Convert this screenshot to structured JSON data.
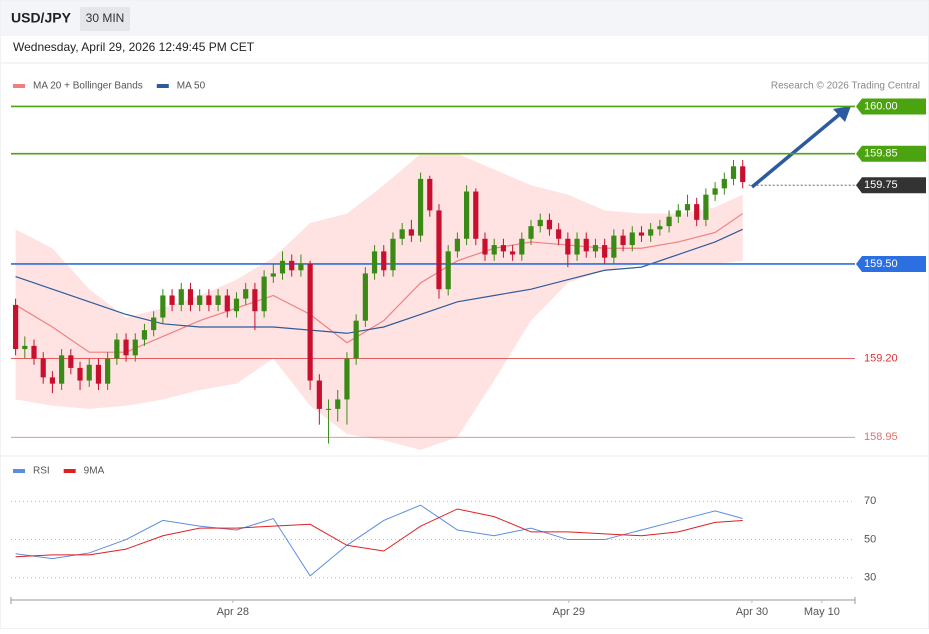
{
  "header": {
    "symbol": "USD/JPY",
    "timeframe": "30 MIN"
  },
  "timestamp": "Wednesday, April 29, 2026 12:49:45 PM CET",
  "chart_data": [
    {
      "type": "candlestick",
      "source": "Research © 2026 Trading Central",
      "up_color": "#3b8a16",
      "down_color": "#c8102e",
      "xlim": [
        -0.5,
        91.2
      ],
      "xticks": [
        {
          "value": 23.6,
          "label": "Apr 28"
        },
        {
          "value": 60.1,
          "label": "Apr 29"
        },
        {
          "value": 80,
          "label": "Apr 30"
        },
        {
          "value": 87.6,
          "label": "May 10"
        }
      ],
      "ylim": [
        158.9,
        160.03
      ],
      "open": [
        159.37,
        159.23,
        159.24,
        159.2,
        159.14,
        159.12,
        159.21,
        159.17,
        159.13,
        159.18,
        159.12,
        159.2,
        159.26,
        159.21,
        159.26,
        159.29,
        159.33,
        159.4,
        159.37,
        159.42,
        159.37,
        159.4,
        159.37,
        159.4,
        159.35,
        159.39,
        159.42,
        159.35,
        159.46,
        159.47,
        159.51,
        159.48,
        159.5,
        159.13,
        159.04,
        159.04,
        159.07,
        159.2,
        159.32,
        159.47,
        159.54,
        159.48,
        159.58,
        159.61,
        159.59,
        159.77,
        159.67,
        159.42,
        159.54,
        159.58,
        159.73,
        159.58,
        159.53,
        159.56,
        159.54,
        159.53,
        159.58,
        159.62,
        159.64,
        159.61,
        159.58,
        159.53,
        159.58,
        159.54,
        159.56,
        159.52,
        159.59,
        159.56,
        159.6,
        159.59,
        159.61,
        159.62,
        159.65,
        159.67,
        159.69,
        159.64,
        159.72,
        159.74,
        159.77,
        159.81
      ],
      "high": [
        159.39,
        159.27,
        159.26,
        159.22,
        159.16,
        159.23,
        159.23,
        159.19,
        159.2,
        159.2,
        159.22,
        159.28,
        159.28,
        159.28,
        159.31,
        159.35,
        159.42,
        159.42,
        159.44,
        159.44,
        159.42,
        159.42,
        159.42,
        159.42,
        159.41,
        159.44,
        159.44,
        159.48,
        159.5,
        159.54,
        159.53,
        159.53,
        159.51,
        159.15,
        159.07,
        159.1,
        159.22,
        159.34,
        159.49,
        159.56,
        159.56,
        159.6,
        159.63,
        159.64,
        159.79,
        159.78,
        159.69,
        159.56,
        159.6,
        159.75,
        159.74,
        159.6,
        159.58,
        159.58,
        159.56,
        159.6,
        159.64,
        159.66,
        159.66,
        159.63,
        159.6,
        159.6,
        159.6,
        159.58,
        159.58,
        159.61,
        159.61,
        159.62,
        159.62,
        159.63,
        159.64,
        159.67,
        159.69,
        159.72,
        159.71,
        159.74,
        159.76,
        159.79,
        159.83,
        159.83
      ],
      "low": [
        159.21,
        159.2,
        159.18,
        159.12,
        159.09,
        159.1,
        159.15,
        159.1,
        159.11,
        159.1,
        159.1,
        159.18,
        159.19,
        159.19,
        159.24,
        159.27,
        159.31,
        159.35,
        159.35,
        159.35,
        159.35,
        159.35,
        159.35,
        159.33,
        159.33,
        159.37,
        159.29,
        159.33,
        159.44,
        159.45,
        159.46,
        159.46,
        159.1,
        158.99,
        158.93,
        159.0,
        158.99,
        159.18,
        159.3,
        159.45,
        159.46,
        159.46,
        159.56,
        159.57,
        159.57,
        159.65,
        159.39,
        159.4,
        159.52,
        159.56,
        159.56,
        159.51,
        159.51,
        159.52,
        159.51,
        159.51,
        159.56,
        159.6,
        159.59,
        159.56,
        159.49,
        159.51,
        159.52,
        159.52,
        159.5,
        159.5,
        159.54,
        159.54,
        159.57,
        159.57,
        159.59,
        159.6,
        159.63,
        159.65,
        159.62,
        159.62,
        159.7,
        159.72,
        159.75,
        159.74
      ],
      "close": [
        159.23,
        159.24,
        159.2,
        159.14,
        159.12,
        159.21,
        159.17,
        159.13,
        159.18,
        159.12,
        159.2,
        159.26,
        159.21,
        159.26,
        159.29,
        159.33,
        159.4,
        159.37,
        159.42,
        159.37,
        159.4,
        159.37,
        159.4,
        159.35,
        159.39,
        159.42,
        159.35,
        159.46,
        159.47,
        159.51,
        159.48,
        159.5,
        159.13,
        159.04,
        159.04,
        159.07,
        159.2,
        159.32,
        159.47,
        159.54,
        159.48,
        159.58,
        159.61,
        159.59,
        159.77,
        159.67,
        159.42,
        159.54,
        159.58,
        159.73,
        159.58,
        159.53,
        159.56,
        159.54,
        159.53,
        159.58,
        159.62,
        159.64,
        159.61,
        159.58,
        159.53,
        159.58,
        159.54,
        159.56,
        159.52,
        159.59,
        159.56,
        159.6,
        159.59,
        159.61,
        159.62,
        159.65,
        159.67,
        159.69,
        159.64,
        159.72,
        159.74,
        159.77,
        159.81,
        159.76
      ],
      "series": [
        {
          "name": "MA 20 + Bollinger Bands",
          "color": "#f08080",
          "band_color": "#ffe3e3",
          "x": [
            0,
            4,
            8,
            12,
            16,
            20,
            24,
            28,
            32,
            36,
            40,
            44,
            48,
            52,
            56,
            60,
            64,
            68,
            72,
            76,
            79
          ],
          "values": [
            159.37,
            159.3,
            159.22,
            159.22,
            159.27,
            159.32,
            159.36,
            159.4,
            159.34,
            159.25,
            159.32,
            159.44,
            159.51,
            159.55,
            159.57,
            159.56,
            159.55,
            159.55,
            159.57,
            159.6,
            159.66
          ],
          "upper": [
            159.61,
            159.55,
            159.42,
            159.33,
            159.36,
            159.4,
            159.45,
            159.52,
            159.63,
            159.66,
            159.75,
            159.85,
            159.85,
            159.8,
            159.75,
            159.72,
            159.67,
            159.66,
            159.66,
            159.68,
            159.72
          ],
          "lower": [
            159.07,
            159.05,
            159.04,
            159.05,
            159.07,
            159.1,
            159.12,
            159.2,
            159.05,
            158.96,
            158.94,
            158.91,
            158.95,
            159.13,
            159.32,
            159.44,
            159.48,
            159.5,
            159.5,
            159.5,
            159.51
          ]
        },
        {
          "name": "MA 50",
          "color": "#2f5b9a",
          "x": [
            0,
            4,
            8,
            12,
            16,
            20,
            24,
            28,
            32,
            36,
            40,
            44,
            48,
            52,
            56,
            60,
            64,
            68,
            72,
            76,
            79
          ],
          "values": [
            159.46,
            159.42,
            159.38,
            159.34,
            159.31,
            159.3,
            159.3,
            159.3,
            159.29,
            159.28,
            159.3,
            159.34,
            159.38,
            159.4,
            159.42,
            159.45,
            159.48,
            159.49,
            159.53,
            159.57,
            159.61
          ]
        }
      ],
      "levels": [
        {
          "value": 160.0,
          "label": "160.00",
          "color": "#4aa30f",
          "boxed": true
        },
        {
          "value": 159.85,
          "label": "159.85",
          "color": "#4aa30f",
          "boxed": true
        },
        {
          "value": 159.75,
          "label": "159.75",
          "color": "#333333",
          "boxed": true,
          "dotted": true
        },
        {
          "value": 159.5,
          "label": "159.50",
          "color": "#2b6fe0",
          "boxed": true
        },
        {
          "value": 159.2,
          "label": "159.20",
          "color": "#e03030",
          "boxed": false
        },
        {
          "value": 158.95,
          "label": "158.95",
          "color": "#e07070",
          "boxed": false
        }
      ]
    },
    {
      "type": "line",
      "xlim": [
        -0.5,
        91.2
      ],
      "ylim": [
        21,
        89
      ],
      "yticks": [
        30,
        50,
        70
      ],
      "series": [
        {
          "name": "RSI",
          "color": "#5b8de0",
          "x": [
            0,
            4,
            8,
            12,
            16,
            20,
            24,
            28,
            32,
            36,
            40,
            44,
            48,
            52,
            56,
            60,
            64,
            68,
            72,
            76,
            79
          ],
          "values": [
            42.6,
            40,
            43,
            50,
            60,
            57,
            55,
            61,
            31,
            47,
            60,
            68,
            55,
            52,
            56,
            50,
            50,
            55,
            60,
            65,
            61
          ]
        },
        {
          "name": "9MA",
          "color": "#e02020",
          "x": [
            0,
            4,
            8,
            12,
            16,
            20,
            24,
            28,
            32,
            36,
            40,
            44,
            48,
            52,
            56,
            60,
            64,
            68,
            72,
            76,
            79
          ],
          "values": [
            41,
            42,
            42,
            45,
            52,
            56,
            56,
            57,
            58,
            47,
            44,
            57,
            66,
            62,
            54,
            54,
            53,
            52,
            54,
            59,
            60
          ]
        }
      ]
    }
  ]
}
